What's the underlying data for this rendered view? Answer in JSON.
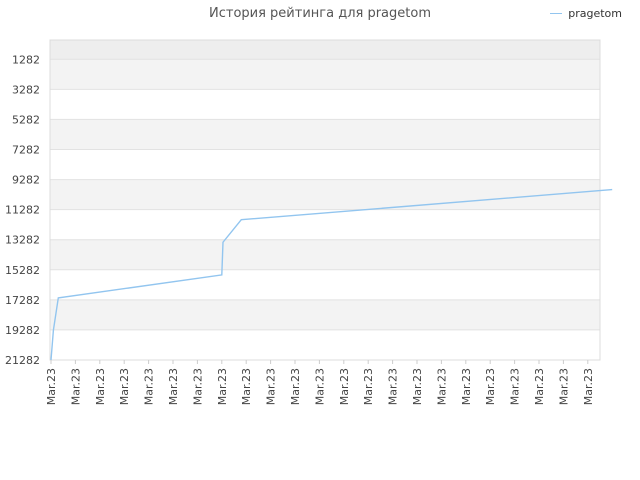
{
  "chart_title": "История рейтинга для pragetom",
  "chart_data": {
    "type": "line",
    "title": "История рейтинга для pragetom",
    "xlabel": "",
    "ylabel": "",
    "y_reversed": true,
    "ylim": [
      0,
      21282
    ],
    "yticks": [
      1282,
      3282,
      5282,
      7282,
      9282,
      11282,
      13282,
      15282,
      17282,
      19282,
      21282
    ],
    "xtick_labels": [
      "Mar.23",
      "Mar.23",
      "Mar.23",
      "Mar.23",
      "Mar.23",
      "Mar.23",
      "Mar.23",
      "Mar.23",
      "Mar.23",
      "Mar.23",
      "Mar.23",
      "Mar.23",
      "Mar.23",
      "Mar.23",
      "Mar.23",
      "Mar.23",
      "Mar.23",
      "Mar.23",
      "Mar.23",
      "Mar.23",
      "Mar.23",
      "Mar.23",
      "Mar.23"
    ],
    "grid": true,
    "legend_position": "top-right",
    "series": [
      {
        "name": "pragetom",
        "color": "#92c5ef",
        "x": [
          0,
          0.1,
          0.2,
          0.3,
          7.0,
          7.05,
          7.8,
          23.0
        ],
        "y": [
          21282,
          19300,
          18200,
          17150,
          15620,
          13450,
          11950,
          9950
        ]
      }
    ]
  }
}
